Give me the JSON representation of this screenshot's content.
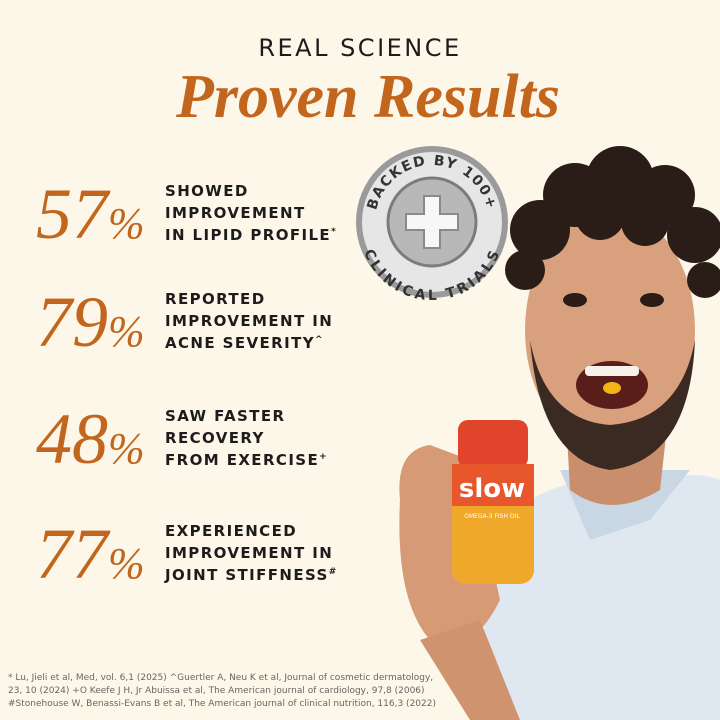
{
  "header": {
    "kicker": "REAL SCIENCE",
    "title": "Proven Results"
  },
  "stats": [
    {
      "figure": "57",
      "symbol": "%",
      "lines": [
        "SHOWED",
        "IMPROVEMENT",
        "IN LIPID PROFILE"
      ],
      "note": "*"
    },
    {
      "figure": "79",
      "symbol": "%",
      "lines": [
        "REPORTED",
        "IMPROVEMENT IN",
        "ACNE SEVERITY"
      ],
      "note": "^"
    },
    {
      "figure": "48",
      "symbol": "%",
      "lines": [
        "SAW FASTER",
        "RECOVERY",
        "FROM EXERCISE"
      ],
      "note": "+"
    },
    {
      "figure": "77",
      "symbol": "%",
      "lines": [
        "EXPERIENCED",
        "IMPROVEMENT IN",
        "JOINT STIFFNESS"
      ],
      "note": "#"
    }
  ],
  "badge": {
    "top": "BACKED BY 100+",
    "bottom": "CLINICAL TRIALS"
  },
  "product": {
    "brand": "slow",
    "subtitle": "OMEGA-3 FISH OIL"
  },
  "footnotes": [
    "* Lu, Jieli et al, Med, vol. 6,1 (2025) ^Guertler A, Neu K et al, Journal of cosmetic dermatology,",
    "23, 10 (2024) +O Keefe J H, Jr Abuissa et al, The American journal of cardiology, 97,8 (2006)",
    "#Stonehouse W, Benassi-Evans B et al, The American journal of clinical nutrition, 116,3 (2022)"
  ]
}
